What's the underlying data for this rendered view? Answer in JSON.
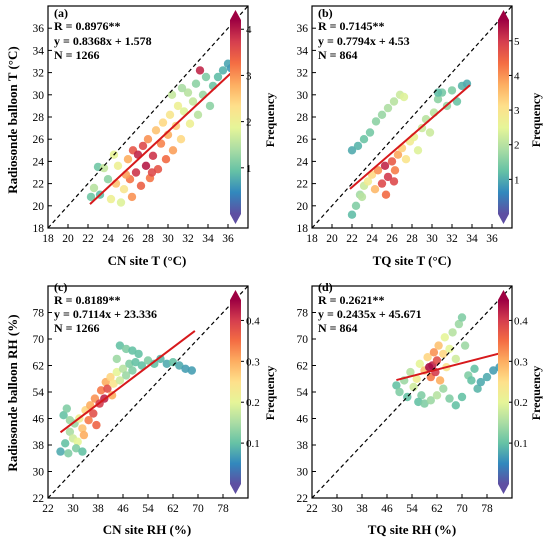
{
  "colors": {
    "fit_line": "#d7191c",
    "identity_line": "#000000",
    "colormap": [
      "#5e4fa2",
      "#3288bd",
      "#66c2a5",
      "#abdda4",
      "#e6f598",
      "#fee08b",
      "#fdae61",
      "#f46d43",
      "#d53e4f",
      "#9e0142"
    ]
  },
  "chart_data": [
    {
      "type": "scatter",
      "panel_label": "(a)",
      "stats": [
        "R = 0.8976**",
        "y = 0.8368x + 1.578",
        "N = 1266"
      ],
      "xlabel": "CN site T (°C)",
      "ylabel": "Radiosonde balloon T (°C)",
      "xlim": [
        18,
        38
      ],
      "ylim": [
        18,
        38
      ],
      "xticks": [
        18,
        20,
        22,
        24,
        26,
        28,
        30,
        32,
        34,
        36
      ],
      "yticks": [
        18,
        20,
        22,
        24,
        26,
        28,
        30,
        32,
        34,
        36
      ],
      "identity_line": true,
      "fit": {
        "slope": 0.8368,
        "intercept": 1.578,
        "x_range": [
          22.2,
          36.5
        ]
      },
      "colorbar": {
        "label": "Frequency",
        "range": [
          0,
          4.2
        ],
        "ticks": [
          1,
          2,
          3,
          4
        ]
      },
      "points": [
        [
          22.3,
          20.8,
          1.0
        ],
        [
          22.6,
          21.6,
          1.5
        ],
        [
          23.0,
          23.5,
          1.0
        ],
        [
          23.2,
          21.0,
          0.9
        ],
        [
          23.6,
          23.4,
          1.6
        ],
        [
          24.0,
          22.4,
          1.2
        ],
        [
          24.3,
          20.6,
          2.0
        ],
        [
          24.8,
          22.0,
          2.6
        ],
        [
          25.0,
          23.6,
          2.0
        ],
        [
          25.3,
          20.3,
          1.8
        ],
        [
          25.6,
          21.5,
          2.2
        ],
        [
          26.0,
          24.2,
          2.8
        ],
        [
          26.2,
          22.4,
          3.2
        ],
        [
          26.5,
          25.0,
          3.5
        ],
        [
          26.8,
          23.0,
          3.8
        ],
        [
          27.0,
          24.6,
          3.9
        ],
        [
          27.3,
          21.8,
          3.4
        ],
        [
          27.5,
          25.4,
          3.6
        ],
        [
          27.8,
          23.6,
          4.0
        ],
        [
          28.0,
          26.0,
          3.0
        ],
        [
          28.2,
          22.5,
          3.2
        ],
        [
          28.5,
          24.5,
          3.8
        ],
        [
          28.8,
          26.8,
          2.6
        ],
        [
          29.0,
          23.3,
          3.5
        ],
        [
          29.3,
          25.6,
          3.1
        ],
        [
          29.5,
          27.5,
          2.4
        ],
        [
          29.8,
          24.2,
          3.3
        ],
        [
          30.0,
          26.4,
          2.8
        ],
        [
          30.2,
          28.2,
          2.2
        ],
        [
          30.5,
          25.0,
          2.9
        ],
        [
          30.8,
          27.2,
          2.5
        ],
        [
          31.0,
          29.0,
          2.0
        ],
        [
          31.3,
          26.0,
          2.4
        ],
        [
          31.6,
          28.5,
          1.8
        ],
        [
          32.0,
          30.2,
          1.5
        ],
        [
          32.2,
          27.4,
          2.0
        ],
        [
          32.5,
          29.4,
          1.6
        ],
        [
          32.8,
          31.0,
          1.2
        ],
        [
          33.0,
          28.2,
          1.5
        ],
        [
          33.2,
          32.2,
          3.9
        ],
        [
          33.5,
          30.0,
          1.3
        ],
        [
          33.8,
          31.6,
          1.1
        ],
        [
          34.2,
          29.0,
          1.2
        ],
        [
          34.5,
          30.8,
          1.0
        ],
        [
          35.0,
          31.6,
          0.9
        ],
        [
          35.5,
          32.2,
          0.8
        ],
        [
          36.0,
          32.8,
          0.7
        ],
        [
          36.3,
          32.4,
          0.6
        ],
        [
          28.4,
          23.0,
          3.6
        ],
        [
          26.4,
          20.8,
          3.0
        ],
        [
          25.8,
          22.8,
          2.9
        ],
        [
          30.4,
          30.0,
          1.6
        ],
        [
          31.4,
          30.6,
          1.4
        ],
        [
          24.6,
          24.6,
          1.9
        ]
      ]
    },
    {
      "type": "scatter",
      "panel_label": "(b)",
      "stats": [
        "R = 0.7145**",
        "y = 0.7794x + 4.53",
        "N = 864"
      ],
      "xlabel": "TQ site T (°C)",
      "ylabel": "",
      "xlim": [
        18,
        38
      ],
      "ylim": [
        18,
        38
      ],
      "xticks": [
        18,
        20,
        22,
        24,
        26,
        28,
        30,
        32,
        34,
        36
      ],
      "yticks": [
        18,
        20,
        22,
        24,
        26,
        28,
        30,
        32,
        34,
        36
      ],
      "identity_line": true,
      "fit": {
        "slope": 0.7794,
        "intercept": 4.53,
        "x_range": [
          21.8,
          33.8
        ]
      },
      "colorbar": {
        "label": "Frequency",
        "range": [
          0,
          5.6
        ],
        "ticks": [
          1,
          2,
          3,
          4,
          5
        ]
      },
      "points": [
        [
          22.0,
          19.2,
          1.2
        ],
        [
          22.4,
          20.0,
          1.5
        ],
        [
          22.8,
          21.0,
          1.8
        ],
        [
          23.2,
          21.8,
          2.2
        ],
        [
          23.6,
          22.2,
          2.8
        ],
        [
          24.0,
          22.8,
          3.2
        ],
        [
          24.3,
          21.5,
          3.6
        ],
        [
          24.6,
          23.2,
          4.0
        ],
        [
          25.0,
          22.0,
          4.8
        ],
        [
          25.3,
          23.6,
          5.2
        ],
        [
          25.6,
          22.6,
          5.0
        ],
        [
          26.0,
          24.0,
          4.6
        ],
        [
          26.3,
          23.2,
          4.2
        ],
        [
          26.6,
          24.6,
          3.8
        ],
        [
          27.0,
          25.2,
          3.3
        ],
        [
          27.4,
          24.2,
          3.0
        ],
        [
          27.8,
          25.8,
          2.8
        ],
        [
          28.2,
          26.2,
          2.6
        ],
        [
          28.6,
          25.0,
          2.4
        ],
        [
          29.0,
          27.0,
          2.2
        ],
        [
          29.4,
          27.8,
          2.0
        ],
        [
          29.8,
          26.6,
          2.2
        ],
        [
          30.2,
          28.4,
          2.0
        ],
        [
          30.6,
          29.6,
          1.6
        ],
        [
          31.0,
          30.2,
          1.4
        ],
        [
          31.5,
          29.0,
          1.7
        ],
        [
          32.0,
          30.4,
          1.5
        ],
        [
          32.5,
          29.4,
          1.3
        ],
        [
          33.0,
          30.8,
          1.1
        ],
        [
          33.5,
          31.0,
          1.0
        ],
        [
          30.6,
          30.2,
          1.2
        ],
        [
          22.0,
          25.0,
          1.0
        ],
        [
          22.6,
          25.4,
          1.1
        ],
        [
          23.2,
          26.0,
          1.3
        ],
        [
          23.8,
          26.6,
          1.4
        ],
        [
          24.4,
          27.6,
          1.6
        ],
        [
          25.0,
          28.2,
          1.7
        ],
        [
          25.6,
          28.8,
          1.9
        ],
        [
          26.2,
          29.4,
          2.0
        ],
        [
          26.8,
          30.0,
          2.2
        ],
        [
          27.2,
          29.8,
          2.4
        ],
        [
          25.4,
          21.0,
          4.4
        ],
        [
          26.2,
          22.2,
          4.8
        ],
        [
          23.0,
          20.8,
          2.0
        ]
      ]
    },
    {
      "type": "scatter",
      "panel_label": "(c)",
      "stats": [
        "R = 0.8189**",
        "y = 0.7114x + 23.336",
        "N = 1266"
      ],
      "xlabel": "CN site RH (%)",
      "ylabel": "Radiosonde balloon RH (%)",
      "xlim": [
        22,
        86
      ],
      "ylim": [
        22,
        86
      ],
      "xticks": [
        22,
        30,
        38,
        46,
        54,
        62,
        70,
        78
      ],
      "yticks": [
        22,
        30,
        38,
        46,
        54,
        62,
        70,
        78
      ],
      "identity_line": true,
      "fit": {
        "slope": 0.7114,
        "intercept": 23.336,
        "x_range": [
          26,
          69
        ]
      },
      "colorbar": {
        "label": "Frequency",
        "range": [
          0,
          0.45
        ],
        "ticks": [
          0.1,
          0.2,
          0.3,
          0.4
        ]
      },
      "points": [
        [
          26.0,
          36.0,
          0.08
        ],
        [
          27.5,
          38.5,
          0.1
        ],
        [
          28.5,
          35.5,
          0.12
        ],
        [
          29.0,
          42.0,
          0.15
        ],
        [
          30.0,
          40.0,
          0.18
        ],
        [
          30.5,
          44.5,
          0.14
        ],
        [
          31.5,
          39.0,
          0.2
        ],
        [
          32.0,
          46.0,
          0.22
        ],
        [
          33.0,
          43.0,
          0.28
        ],
        [
          33.5,
          41.0,
          0.3
        ],
        [
          34.0,
          48.5,
          0.26
        ],
        [
          35.0,
          45.5,
          0.34
        ],
        [
          35.5,
          50.0,
          0.3
        ],
        [
          36.5,
          47.5,
          0.38
        ],
        [
          37.0,
          52.0,
          0.32
        ],
        [
          37.5,
          44.0,
          0.36
        ],
        [
          38.5,
          50.5,
          0.4
        ],
        [
          39.0,
          54.5,
          0.34
        ],
        [
          40.0,
          52.0,
          0.42
        ],
        [
          40.5,
          57.0,
          0.3
        ],
        [
          41.0,
          55.0,
          0.38
        ],
        [
          42.0,
          58.5,
          0.26
        ],
        [
          42.5,
          53.0,
          0.3
        ],
        [
          43.0,
          56.5,
          0.24
        ],
        [
          44.0,
          60.0,
          0.2
        ],
        [
          45.0,
          57.5,
          0.18
        ],
        [
          46.0,
          61.0,
          0.16
        ],
        [
          47.0,
          59.0,
          0.14
        ],
        [
          48.0,
          62.5,
          0.12
        ],
        [
          49.0,
          60.5,
          0.12
        ],
        [
          50.0,
          63.0,
          0.1
        ],
        [
          52.0,
          62.0,
          0.1
        ],
        [
          54.0,
          63.5,
          0.12
        ],
        [
          56.0,
          62.5,
          0.1
        ],
        [
          58.0,
          64.0,
          0.09
        ],
        [
          60.0,
          62.5,
          0.08
        ],
        [
          62.0,
          63.0,
          0.1
        ],
        [
          64.0,
          62.0,
          0.08
        ],
        [
          66.0,
          61.0,
          0.07
        ],
        [
          68.0,
          60.5,
          0.07
        ],
        [
          45.0,
          68.0,
          0.1
        ],
        [
          47.0,
          67.0,
          0.12
        ],
        [
          49.0,
          66.5,
          0.1
        ],
        [
          51.0,
          65.5,
          0.1
        ],
        [
          27.0,
          47.0,
          0.1
        ],
        [
          28.0,
          49.0,
          0.12
        ],
        [
          29.0,
          45.5,
          0.14
        ],
        [
          31.0,
          37.0,
          0.12
        ],
        [
          33.0,
          36.0,
          0.1
        ],
        [
          44.0,
          64.0,
          0.14
        ]
      ]
    },
    {
      "type": "scatter",
      "panel_label": "(d)",
      "stats": [
        "R = 0.2621**",
        "y = 0.2435x + 45.671",
        "N = 864"
      ],
      "xlabel": "TQ site RH (%)",
      "ylabel": "",
      "xlim": [
        22,
        86
      ],
      "ylim": [
        22,
        86
      ],
      "xticks": [
        22,
        30,
        38,
        46,
        54,
        62,
        70,
        78
      ],
      "yticks": [
        22,
        30,
        38,
        46,
        54,
        62,
        70,
        78
      ],
      "identity_line": true,
      "fit": {
        "slope": 0.2435,
        "intercept": 45.671,
        "x_range": [
          49,
          82
        ]
      },
      "colorbar": {
        "label": "Frequency",
        "range": [
          0,
          0.45
        ],
        "ticks": [
          0.1,
          0.2,
          0.3,
          0.4
        ]
      },
      "points": [
        [
          49.0,
          56.0,
          0.1
        ],
        [
          50.0,
          54.0,
          0.12
        ],
        [
          51.5,
          57.5,
          0.14
        ],
        [
          52.5,
          52.5,
          0.1
        ],
        [
          53.5,
          60.0,
          0.16
        ],
        [
          54.5,
          55.5,
          0.18
        ],
        [
          55.5,
          58.0,
          0.22
        ],
        [
          56.5,
          62.5,
          0.2
        ],
        [
          57.0,
          53.0,
          0.12
        ],
        [
          58.0,
          60.5,
          0.28
        ],
        [
          59.0,
          64.5,
          0.26
        ],
        [
          60.0,
          58.5,
          0.34
        ],
        [
          60.5,
          62.0,
          0.42
        ],
        [
          61.0,
          66.0,
          0.32
        ],
        [
          61.5,
          60.0,
          0.4
        ],
        [
          62.0,
          63.5,
          0.38
        ],
        [
          62.5,
          68.0,
          0.28
        ],
        [
          63.0,
          57.5,
          0.3
        ],
        [
          64.0,
          65.5,
          0.26
        ],
        [
          64.5,
          70.5,
          0.2
        ],
        [
          65.0,
          61.5,
          0.24
        ],
        [
          66.0,
          67.0,
          0.2
        ],
        [
          67.0,
          72.0,
          0.16
        ],
        [
          68.0,
          64.0,
          0.18
        ],
        [
          69.0,
          74.5,
          0.14
        ],
        [
          70.0,
          76.5,
          0.12
        ],
        [
          71.0,
          68.0,
          0.14
        ],
        [
          72.0,
          59.0,
          0.12
        ],
        [
          73.0,
          57.5,
          0.1
        ],
        [
          74.0,
          61.0,
          0.1
        ],
        [
          75.0,
          55.0,
          0.09
        ],
        [
          76.0,
          57.0,
          0.08
        ],
        [
          78.0,
          58.5,
          0.08
        ],
        [
          80.0,
          60.5,
          0.07
        ],
        [
          82.0,
          61.5,
          0.07
        ],
        [
          56.0,
          51.0,
          0.1
        ],
        [
          58.0,
          50.5,
          0.12
        ],
        [
          60.0,
          51.5,
          0.14
        ],
        [
          62.0,
          53.0,
          0.16
        ],
        [
          64.0,
          55.0,
          0.14
        ],
        [
          66.0,
          52.0,
          0.12
        ],
        [
          68.0,
          50.0,
          0.1
        ],
        [
          70.0,
          52.5,
          0.1
        ],
        [
          59.5,
          61.5,
          0.44
        ]
      ]
    }
  ]
}
